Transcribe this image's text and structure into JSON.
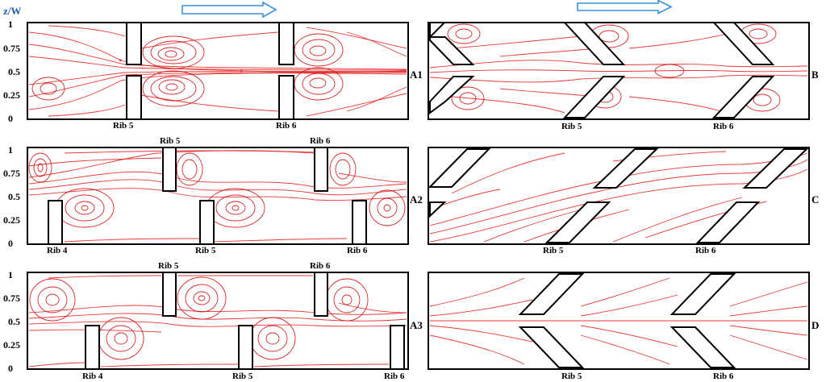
{
  "colors": {
    "streamline": "#e01818",
    "flow_arrow": "#3a8fd6",
    "axis_title": "#1f5fa8"
  },
  "axis": {
    "title": "z/W",
    "ticks": [
      "1",
      "0.75",
      "0.5",
      "0.25",
      "0"
    ]
  },
  "panels": [
    {
      "id": "A1",
      "ribs": [
        "Rib 5",
        "Rib 6"
      ]
    },
    {
      "id": "A2",
      "ribs": [
        "Rib 5",
        "Rib 6",
        "Rib 4",
        "Rib 5",
        "Rib 6"
      ]
    },
    {
      "id": "A3",
      "ribs": [
        "Rib 5",
        "Rib 6",
        "Rib 4",
        "Rib 5",
        "Rib 6"
      ]
    },
    {
      "id": "B",
      "ribs": [
        "Rib 5",
        "Rib 6"
      ]
    },
    {
      "id": "C",
      "ribs": [
        "Rib 5",
        "Rib 6"
      ]
    },
    {
      "id": "D",
      "ribs": [
        "Rib 5",
        "Rib 6"
      ]
    }
  ]
}
